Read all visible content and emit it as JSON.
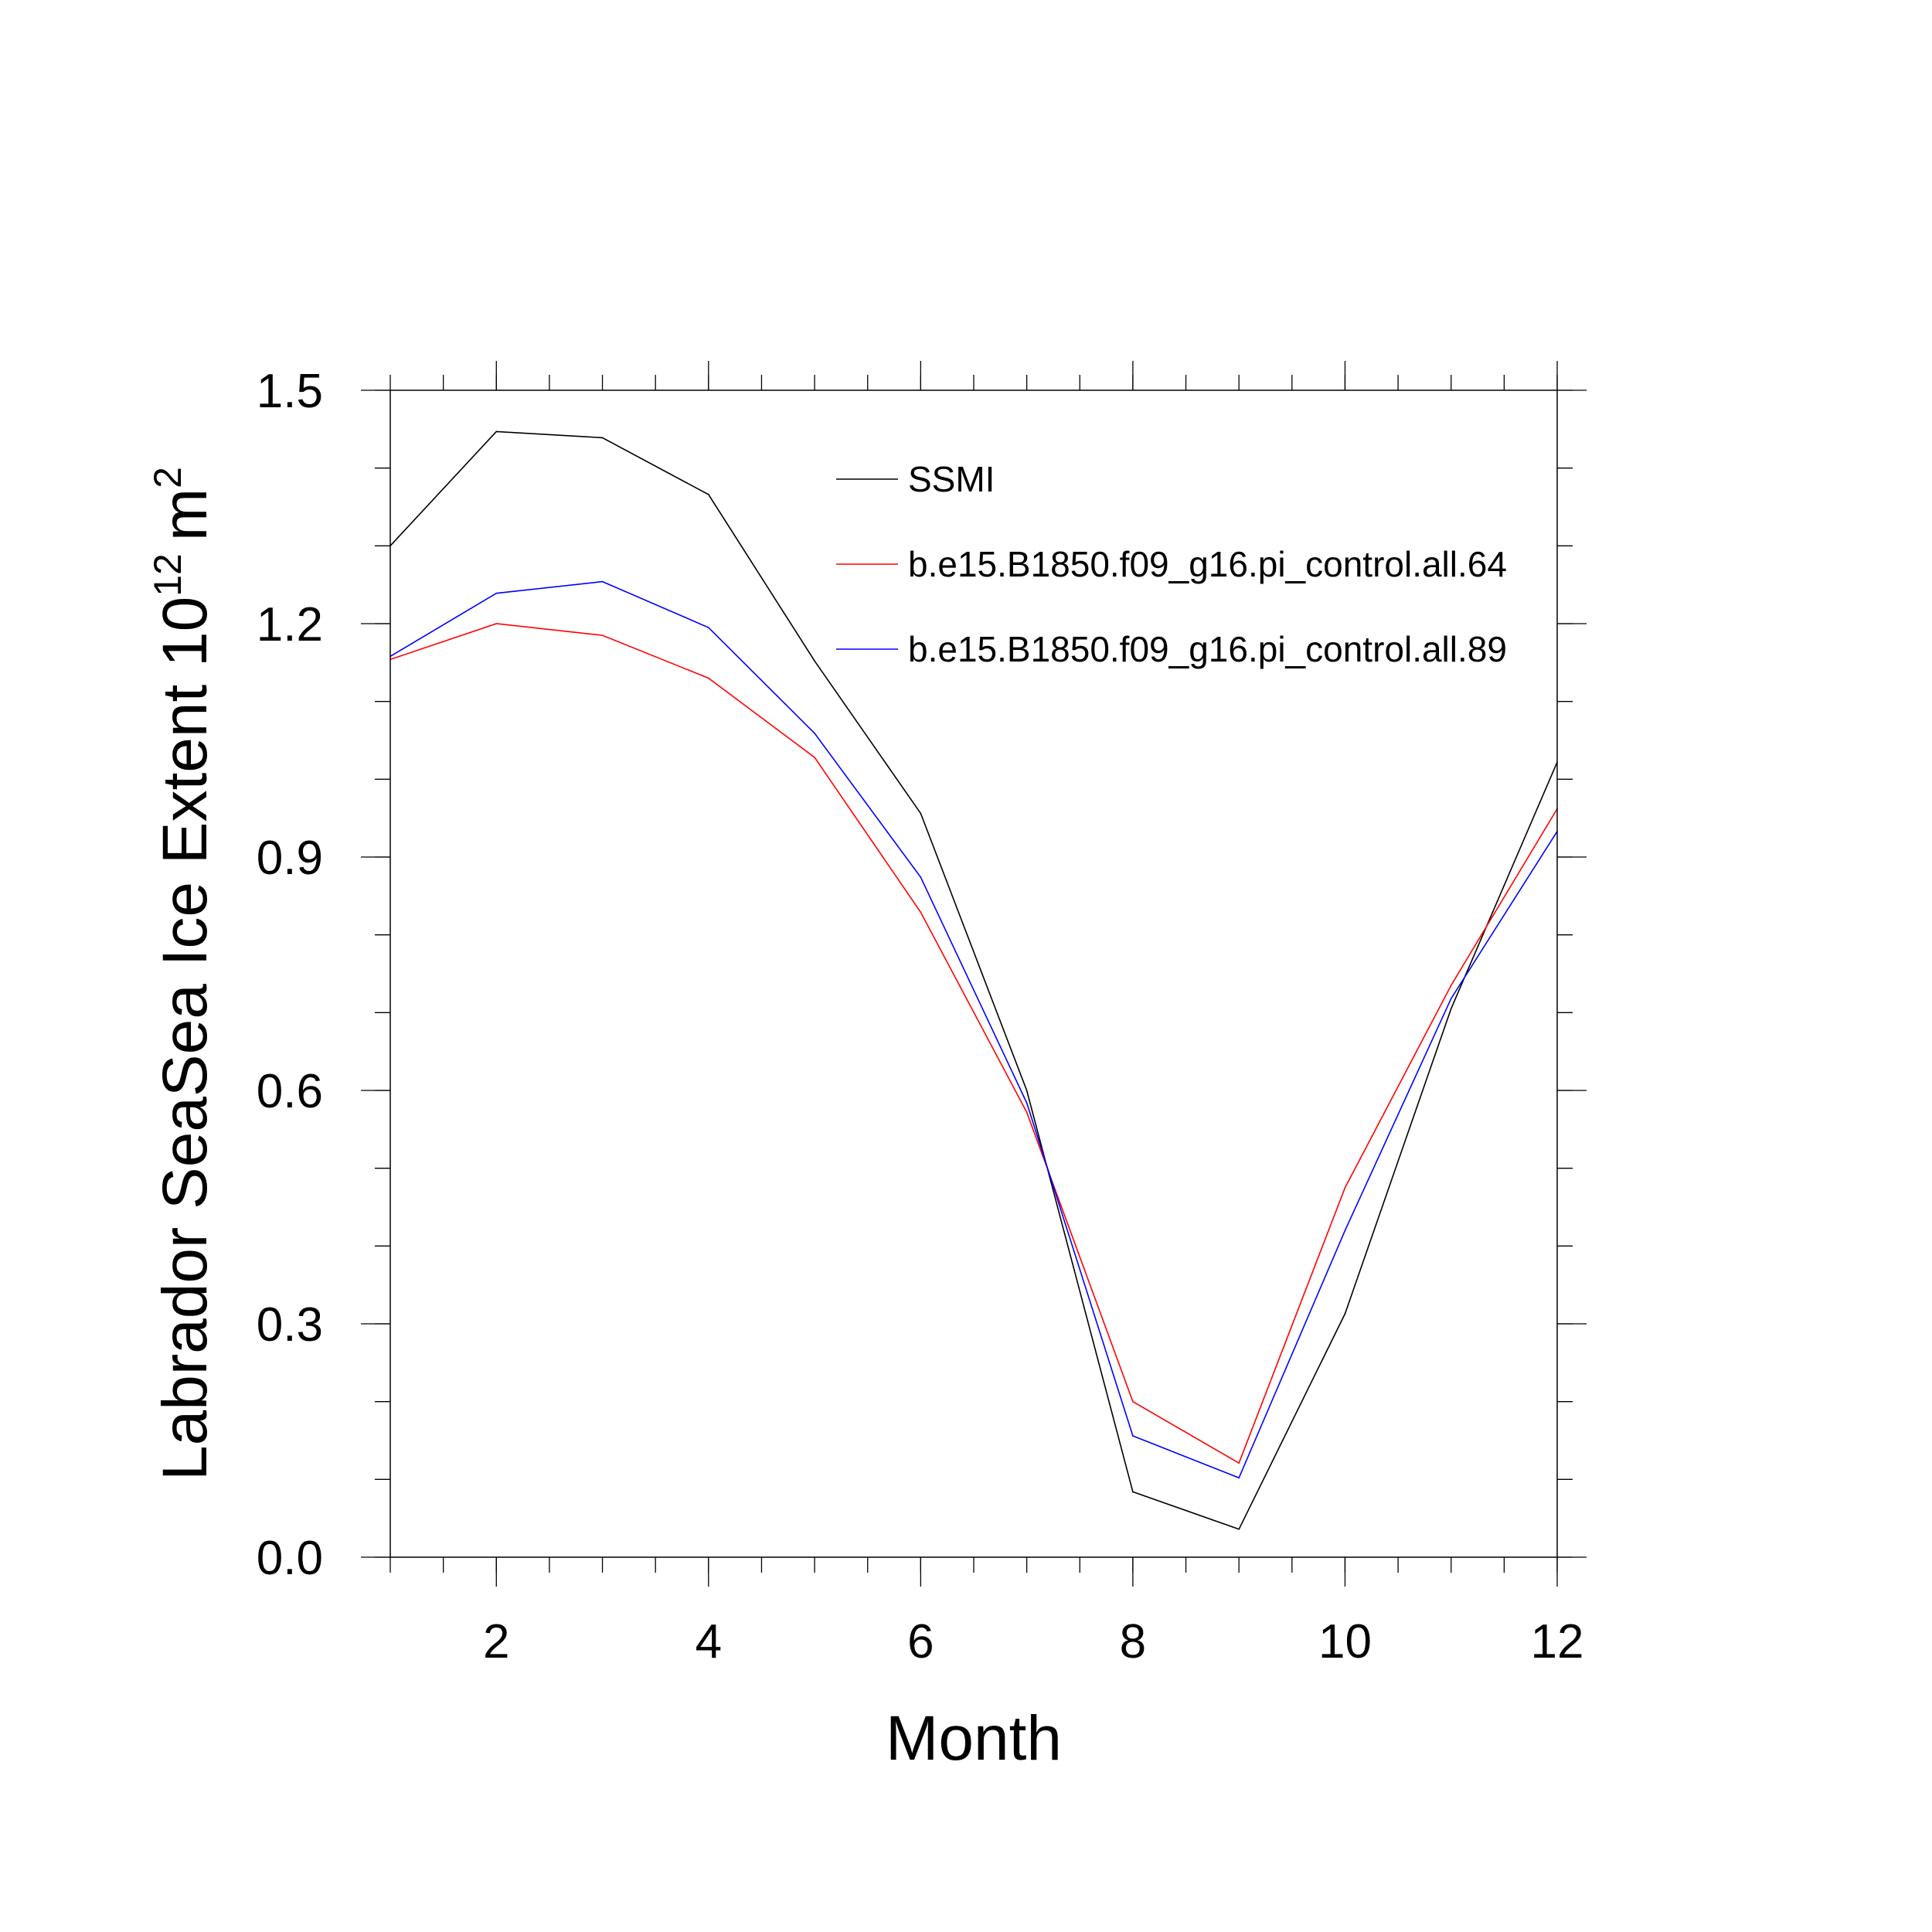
{
  "chart_data": {
    "type": "line",
    "xlabel": "Month",
    "ylabel": "Labrador SeaSea Ice Extent 10",
    "ylabel_exponent": "12",
    "ylabel_unit": "m",
    "ylabel_unit_exponent": "2",
    "xlim": [
      1,
      12
    ],
    "ylim": [
      0,
      1.5
    ],
    "x_ticks": [
      2,
      4,
      6,
      8,
      10,
      12
    ],
    "y_ticks": [
      "0.0",
      "0.3",
      "0.6",
      "0.9",
      "1.2",
      "1.5"
    ],
    "grid": false,
    "legend_position": "top-right",
    "x": [
      1,
      2,
      3,
      4,
      5,
      6,
      7,
      8,
      9,
      10,
      11,
      12
    ],
    "series": [
      {
        "name": "SSMI",
        "color": "#000000",
        "values": [
          1.3,
          1.447,
          1.439,
          1.366,
          1.152,
          0.956,
          0.6,
          0.084,
          0.036,
          0.313,
          0.705,
          1.022
        ]
      },
      {
        "name": "b.e15.B1850.f09_g16.pi_control.all.64",
        "color": "#ff0000",
        "values": [
          1.154,
          1.2,
          1.185,
          1.13,
          1.028,
          0.829,
          0.572,
          0.2,
          0.121,
          0.475,
          0.735,
          0.962
        ]
      },
      {
        "name": "b.e15.B1850.f09_g16.pi_control.all.89",
        "color": "#0000ff",
        "values": [
          1.158,
          1.239,
          1.254,
          1.195,
          1.059,
          0.874,
          0.584,
          0.156,
          0.102,
          0.42,
          0.718,
          0.933
        ]
      }
    ]
  }
}
